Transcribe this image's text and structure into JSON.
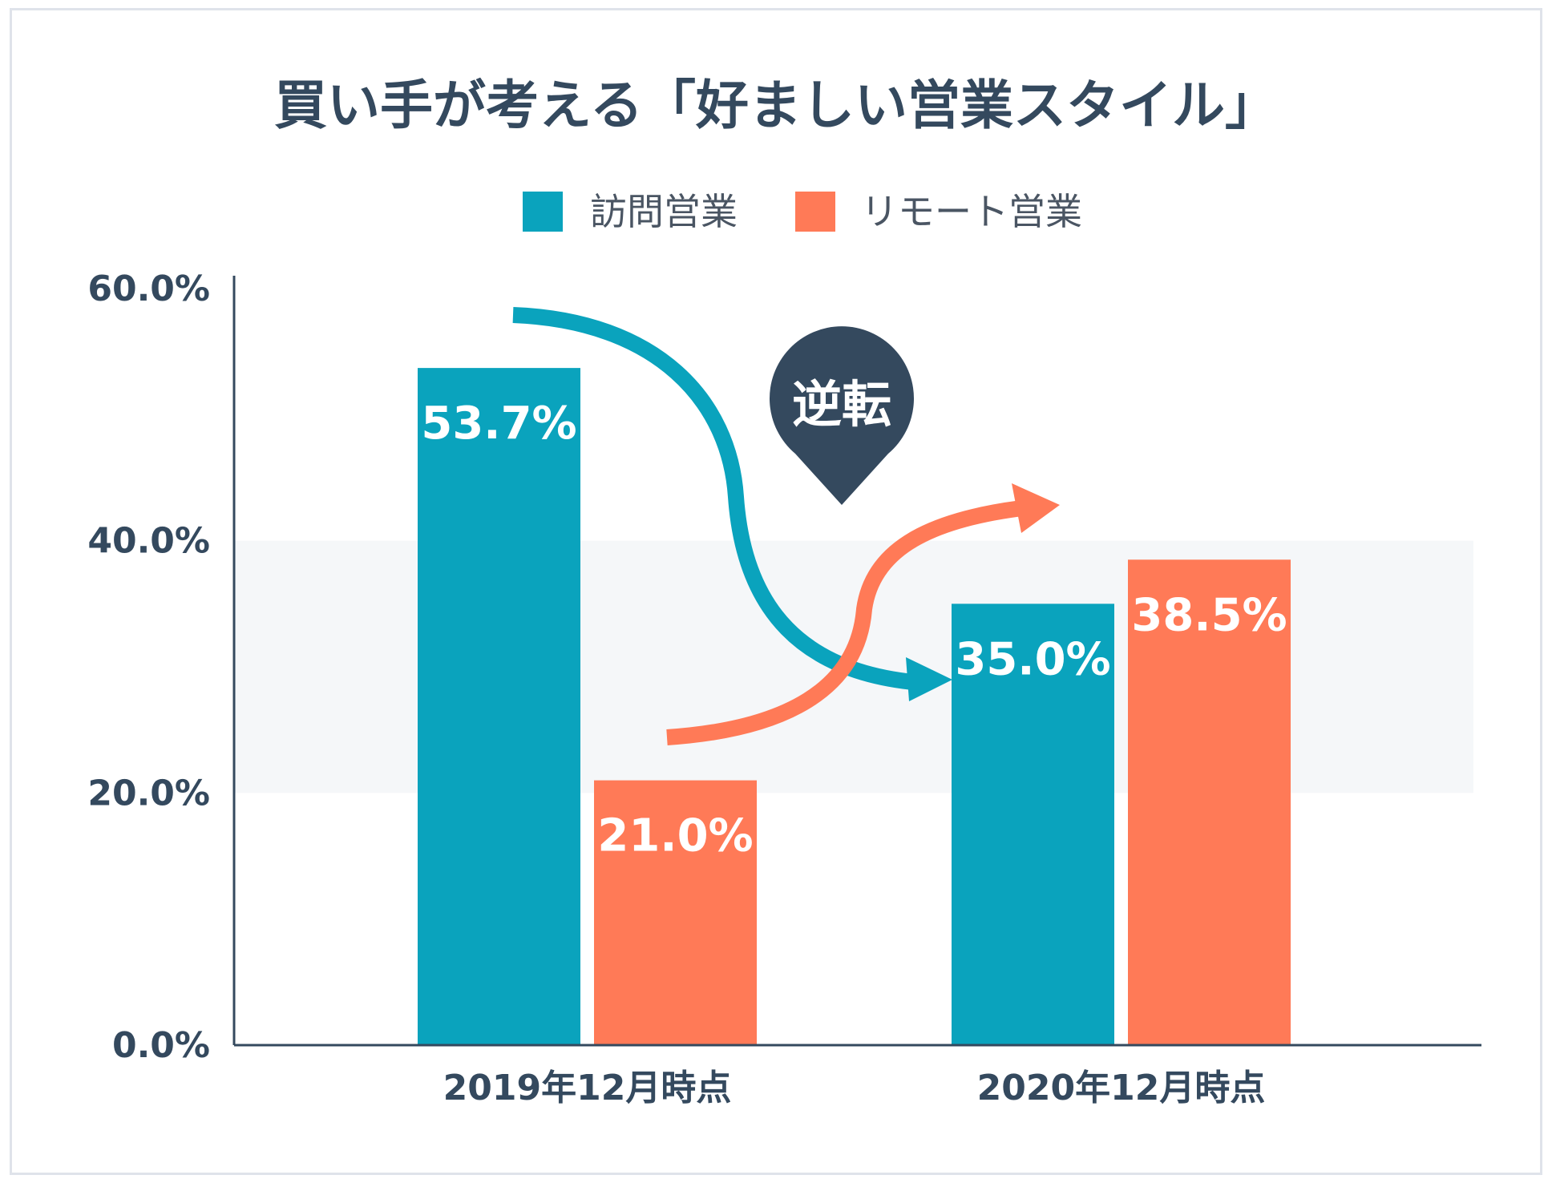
{
  "chart_data": {
    "type": "bar",
    "title": "買い手が考える「好ましい営業スタイル」",
    "categories": [
      "2019年12月時点",
      "2020年12月時点"
    ],
    "series": [
      {
        "name": "訪問営業",
        "values": [
          53.7,
          35.0
        ],
        "labels": [
          "53.7%",
          "35.0%"
        ],
        "color": "#0aa3bd"
      },
      {
        "name": "リモート営業",
        "values": [
          21.0,
          38.5
        ],
        "labels": [
          "21.0%",
          "38.5%"
        ],
        "color": "#ff7a57"
      }
    ],
    "ylim": [
      0,
      60
    ],
    "yticks": [
      {
        "value": 0,
        "label": "0.0%"
      },
      {
        "value": 20,
        "label": "20.0%"
      },
      {
        "value": 40,
        "label": "40.0%"
      },
      {
        "value": 60,
        "label": "60.0%"
      }
    ],
    "legend_position": "top-center",
    "highlight_band": [
      20,
      40
    ],
    "annotation": {
      "text": "逆転",
      "color": "#34495e"
    },
    "colors": {
      "axis": "#34495e",
      "band": "#f5f7f9",
      "text": "#34495e"
    }
  }
}
